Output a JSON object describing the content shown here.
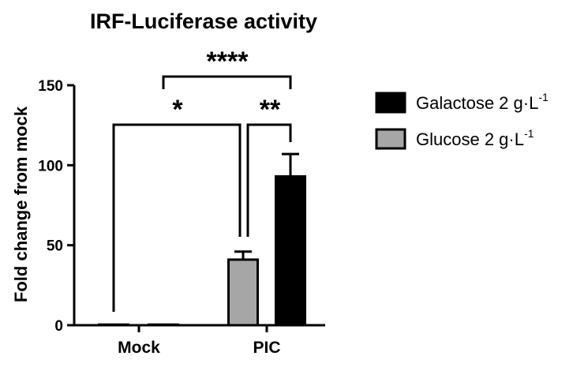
{
  "chart_data": {
    "type": "bar",
    "title": "IRF-Luciferase activity",
    "ylabel": "Fold change from mock",
    "xlabel": "",
    "ylim": [
      0,
      150
    ],
    "yticks": [
      0,
      50,
      100,
      150
    ],
    "categories": [
      "Mock",
      "PIC"
    ],
    "series": [
      {
        "name": "Glucose 2 g·L-1",
        "values": [
          0.3,
          41
        ],
        "errors": [
          0,
          5
        ],
        "color": "#a6a6a6"
      },
      {
        "name": "Galactose 2 g·L-1",
        "values": [
          0.3,
          93
        ],
        "errors": [
          0,
          14
        ],
        "color": "#000000"
      }
    ],
    "legend_order": [
      "Galactose 2 g·L-1",
      "Glucose 2 g·L-1"
    ],
    "legend_position": "right",
    "significance": [
      {
        "label": "****",
        "from": "Mock · Galactose",
        "to": "PIC · Galactose"
      },
      {
        "label": "*",
        "from": "Mock · Glucose",
        "to": "PIC · Glucose"
      },
      {
        "label": "**",
        "from": "PIC · Glucose",
        "to": "PIC · Galactose"
      }
    ]
  }
}
